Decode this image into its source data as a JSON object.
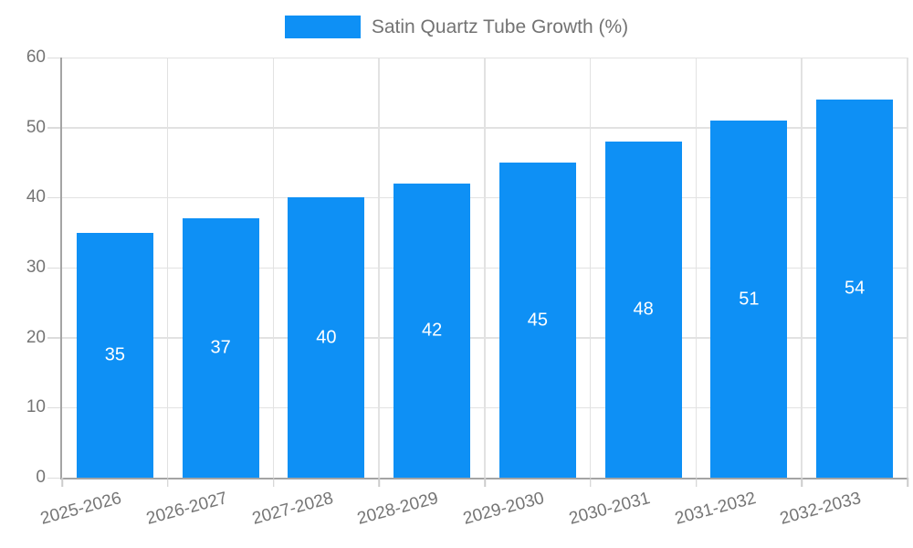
{
  "legend": {
    "label": "Satin Quartz Tube Growth (%)"
  },
  "colors": {
    "bar": "#0e90f5",
    "bar_label_text": "#ffffff",
    "axis_line": "#a4a4a4",
    "grid_line": "#e2e2e2",
    "tick_label_text": "#757575",
    "legend_text": "#737373",
    "background": "#ffffff"
  },
  "chart_data": {
    "type": "bar",
    "title": "Satin Quartz Tube Growth (%)",
    "categories": [
      "2025-2026",
      "2026-2027",
      "2027-2028",
      "2028-2029",
      "2029-2030",
      "2030-2031",
      "2031-2032",
      "2032-2033"
    ],
    "series": [
      {
        "name": "Satin Quartz Tube Growth (%)",
        "values": [
          35,
          37,
          40,
          42,
          45,
          48,
          51,
          54
        ]
      }
    ],
    "xlabel": "",
    "ylabel": "",
    "ylim": [
      0,
      60
    ],
    "yticks": [
      0,
      10,
      20,
      30,
      40,
      50,
      60
    ],
    "grid": true,
    "bar_value_labels": true,
    "legend_position": "top-center",
    "x_label_rotation_deg": -15
  }
}
